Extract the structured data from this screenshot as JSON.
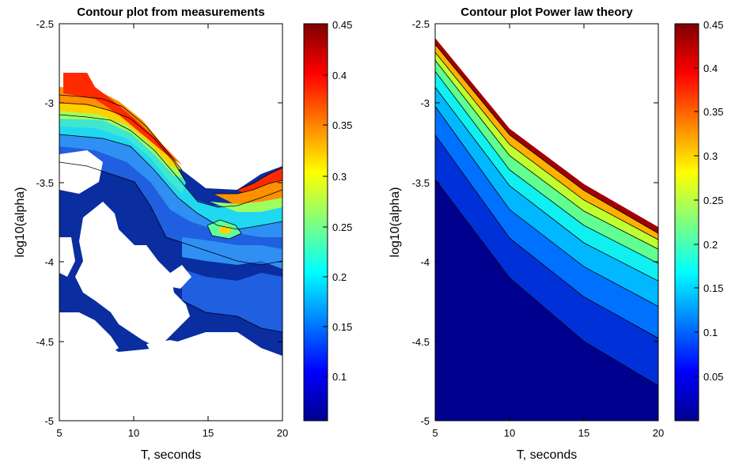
{
  "figure": {
    "panels": [
      {
        "title": "Contour plot from measurements",
        "xlabel": "T, seconds",
        "ylabel": "log10(alpha)"
      },
      {
        "title": "Contour plot Power law theory",
        "xlabel": "T, seconds",
        "ylabel": "log10(alpha)"
      }
    ]
  },
  "chart_data": [
    {
      "type": "contour",
      "title": "Contour plot from measurements",
      "xlabel": "T, seconds",
      "ylabel": "log10(alpha)",
      "xlim": [
        5,
        20
      ],
      "ylim": [
        -5,
        -2.5
      ],
      "xticks": [
        "5",
        "10",
        "15",
        "20"
      ],
      "yticks": [
        "-2.5",
        "-3",
        "-3.5",
        "-4",
        "-4.5",
        "-5"
      ],
      "colormap": "jet",
      "colorbar": {
        "range": [
          0.05,
          0.45
        ],
        "ticks": [
          "0.1",
          "0.15",
          "0.2",
          "0.25",
          "0.3",
          "0.35",
          "0.4",
          "0.45"
        ]
      },
      "contour_levels": [
        0.05,
        0.075,
        0.1,
        0.125,
        0.15,
        0.175,
        0.2,
        0.225,
        0.25,
        0.3,
        0.35,
        0.4
      ],
      "grid": false,
      "features": [
        {
          "x": 16,
          "y": -3.8,
          "value": 0.28
        },
        {
          "x": 18.5,
          "y": -3.5,
          "value": 0.42
        },
        {
          "x": 9.5,
          "y": -3.1,
          "value": 0.33
        }
      ],
      "missing_data": "white regions for T 5-14, log10(alpha) -3.3 to -4.8"
    },
    {
      "type": "contour",
      "title": "Contour plot Power law theory",
      "xlabel": "T, seconds",
      "ylabel": "log10(alpha)",
      "xlim": [
        5,
        20
      ],
      "ylim": [
        -5,
        -2.5
      ],
      "xticks": [
        "5",
        "10",
        "15",
        "20"
      ],
      "yticks": [
        "-2.5",
        "-3",
        "-3.5",
        "-4",
        "-4.5",
        "-5"
      ],
      "colormap": "jet",
      "colorbar": {
        "range": [
          0,
          0.45
        ],
        "ticks": [
          "0.05",
          "0.1",
          "0.15",
          "0.2",
          "0.25",
          "0.3",
          "0.35",
          "0.4",
          "0.45"
        ]
      },
      "contour_levels": [
        0.05,
        0.1,
        0.15,
        0.2,
        0.25,
        0.3,
        0.35,
        0.4
      ],
      "grid": false,
      "contour_lines": [
        {
          "level": 0.05,
          "points": [
            [
              5,
              -3.48
            ],
            [
              10,
              -4.1
            ],
            [
              15,
              -4.5
            ],
            [
              20,
              -4.78
            ]
          ]
        },
        {
          "level": 0.1,
          "points": [
            [
              5,
              -3.2
            ],
            [
              10,
              -3.85
            ],
            [
              15,
              -4.22
            ],
            [
              20,
              -4.48
            ]
          ]
        },
        {
          "level": 0.15,
          "points": [
            [
              5,
              -3.02
            ],
            [
              10,
              -3.67
            ],
            [
              15,
              -4.03
            ],
            [
              20,
              -4.28
            ]
          ]
        },
        {
          "level": 0.2,
          "points": [
            [
              5,
              -2.9
            ],
            [
              10,
              -3.52
            ],
            [
              15,
              -3.88
            ],
            [
              20,
              -4.12
            ]
          ]
        },
        {
          "level": 0.25,
          "points": [
            [
              5,
              -2.8
            ],
            [
              10,
              -3.42
            ],
            [
              15,
              -3.77
            ],
            [
              20,
              -4.01
            ]
          ]
        },
        {
          "level": 0.3,
          "points": [
            [
              5,
              -2.73
            ],
            [
              10,
              -3.33
            ],
            [
              15,
              -3.68
            ],
            [
              20,
              -3.92
            ]
          ]
        },
        {
          "level": 0.35,
          "points": [
            [
              5,
              -2.68
            ],
            [
              10,
              -3.26
            ],
            [
              15,
              -3.61
            ],
            [
              20,
              -3.86
            ]
          ]
        },
        {
          "level": 0.4,
          "points": [
            [
              5,
              -2.63
            ],
            [
              10,
              -3.2
            ],
            [
              15,
              -3.55
            ],
            [
              20,
              -3.82
            ]
          ]
        }
      ]
    }
  ]
}
